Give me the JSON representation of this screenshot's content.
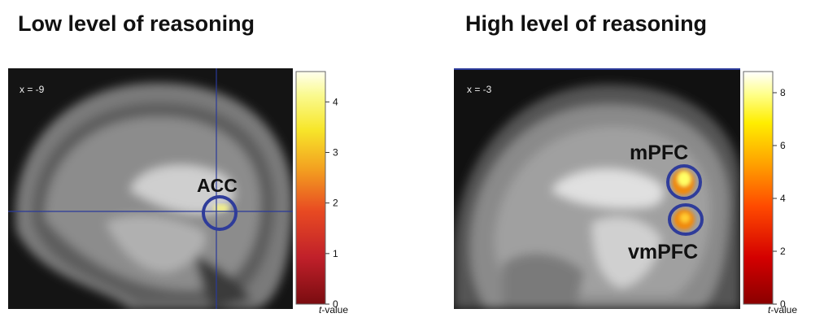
{
  "left_panel": {
    "title": "Low level of reasoning",
    "coord_label": "x = -9",
    "region_label": "ACC",
    "colorbar": {
      "ticks": [
        "0",
        "1",
        "2",
        "3",
        "4"
      ],
      "tick_values": [
        0,
        1,
        2,
        3,
        4
      ],
      "max": 4.6,
      "unit_label": "-value",
      "unit_prefix": "t"
    }
  },
  "right_panel": {
    "title": "High level of reasoning",
    "coord_label": "x = -3",
    "region_labels": [
      "mPFC",
      "vmPFC"
    ],
    "colorbar": {
      "ticks": [
        "0",
        "2",
        "4",
        "6",
        "8"
      ],
      "tick_values": [
        0,
        2,
        4,
        6,
        8
      ],
      "max": 8.8,
      "unit_label": "-value",
      "unit_prefix": "t"
    }
  },
  "colors": {
    "circle": "#2f3c9a",
    "crosshair": "#2a3a9a",
    "activation_hot": "#ffff66",
    "activation_orange": "#f08a10"
  }
}
